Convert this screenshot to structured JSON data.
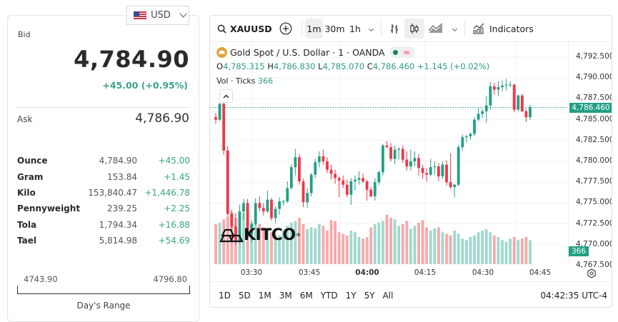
{
  "currency_selector": {
    "label": "USD",
    "flag": "us-flag-icon"
  },
  "quote": {
    "bid_label": "Bid",
    "bid_value": "4,784.90",
    "bid_change": "+45.00 (+0.95%)",
    "ask_label": "Ask",
    "ask_value": "4,786.90"
  },
  "units": [
    {
      "name": "Ounce",
      "price": "4,784.90",
      "change": "+45.00"
    },
    {
      "name": "Gram",
      "price": "153.84",
      "change": "+1.45"
    },
    {
      "name": "Kilo",
      "price": "153,840.47",
      "change": "+1,446.78"
    },
    {
      "name": "Pennyweight",
      "price": "239.25",
      "change": "+2.25"
    },
    {
      "name": "Tola",
      "price": "1,794.34",
      "change": "+16.88"
    },
    {
      "name": "Tael",
      "price": "5,814.98",
      "change": "+54.69"
    }
  ],
  "day_range": {
    "low": "4743.90",
    "high": "4796.80",
    "label": "Day's Range"
  },
  "chart": {
    "toolbar": {
      "symbol": "XAUUSD",
      "intervals": [
        "1m",
        "30m",
        "1h"
      ],
      "active_interval": "1m",
      "indicators_label": "Indicators"
    },
    "legend": {
      "title": "Gold Spot / U.S. Dollar · 1 · OANDA",
      "o_label": "O",
      "o": "4,785.315",
      "h_label": "H",
      "h": "4,786.830",
      "l_label": "L",
      "l": "4,785.070",
      "c_label": "C",
      "c": "4,786.460",
      "change": "+1.145 (+0.02%)",
      "vol_label": "Vol · Ticks",
      "vol_value": "366"
    },
    "price_ticks": [
      "4,792.500",
      "4,790.000",
      "4,787.500",
      "4,785.000",
      "4,782.500",
      "4,780.000",
      "4,777.500",
      "4,775.000",
      "4,772.500",
      "4,770.000",
      "4,767.500"
    ],
    "last_price_tag": "4,786.460",
    "volume_tag": "366",
    "time_ticks": [
      {
        "label": "03:30",
        "bold": false
      },
      {
        "label": "03:45",
        "bold": false
      },
      {
        "label": "04:00",
        "bold": true
      },
      {
        "label": "04:15",
        "bold": false
      },
      {
        "label": "04:30",
        "bold": false
      },
      {
        "label": "04:45",
        "bold": false
      }
    ],
    "ranges": [
      "1D",
      "5D",
      "1M",
      "3M",
      "6M",
      "YTD",
      "1Y",
      "5Y",
      "All"
    ],
    "clock": "04:42:35 UTC-4",
    "watermark": "KITCO",
    "colors": {
      "up": "#22a085",
      "down": "#f0364a",
      "vol_up": "#9fd9cd",
      "vol_down": "#f7a9ac",
      "last_line": "#22a085"
    }
  },
  "chart_data": {
    "type": "candlestick",
    "title": "Gold Spot / U.S. Dollar · 1 · OANDA",
    "interval": "1m",
    "ylim": [
      4766.5,
      4793.0
    ],
    "y_ticks": [
      4767.5,
      4770,
      4772.5,
      4775,
      4777.5,
      4780,
      4782.5,
      4785,
      4787.5,
      4790,
      4792.5
    ],
    "x_ticks": [
      "03:30",
      "03:45",
      "04:00",
      "04:15",
      "04:30",
      "04:45"
    ],
    "last_price": 4786.46,
    "ohlc": [
      [
        4785.3,
        4785.8,
        4784.5,
        4785.0
      ],
      [
        4785.0,
        4787.0,
        4784.8,
        4786.9
      ],
      [
        4786.9,
        4787.2,
        4780.8,
        4781.3
      ],
      [
        4781.3,
        4781.8,
        4773.5,
        4773.7
      ],
      [
        4773.7,
        4774.2,
        4771.8,
        4772.2
      ],
      [
        4772.2,
        4773.8,
        4770.0,
        4770.5
      ],
      [
        4770.5,
        4774.8,
        4770.2,
        4774.0
      ],
      [
        4774.0,
        4775.5,
        4773.0,
        4775.0
      ],
      [
        4775.0,
        4775.5,
        4770.8,
        4771.2
      ],
      [
        4771.2,
        4773.0,
        4770.3,
        4772.5
      ],
      [
        4772.5,
        4775.6,
        4772.3,
        4775.0
      ],
      [
        4775.0,
        4775.8,
        4774.0,
        4774.4
      ],
      [
        4774.4,
        4775.0,
        4773.5,
        4774.0
      ],
      [
        4774.0,
        4776.5,
        4773.8,
        4775.4
      ],
      [
        4775.4,
        4775.6,
        4772.9,
        4773.2
      ],
      [
        4773.2,
        4774.6,
        4772.6,
        4774.3
      ],
      [
        4774.3,
        4775.7,
        4773.6,
        4775.2
      ],
      [
        4775.2,
        4775.4,
        4774.7,
        4775.2
      ],
      [
        4775.2,
        4777.6,
        4775.0,
        4776.8
      ],
      [
        4776.8,
        4779.6,
        4776.6,
        4779.3
      ],
      [
        4779.3,
        4781.5,
        4778.3,
        4780.5
      ],
      [
        4780.5,
        4780.9,
        4777.2,
        4777.6
      ],
      [
        4777.6,
        4777.9,
        4774.5,
        4775.1
      ],
      [
        4775.1,
        4776.8,
        4774.4,
        4776.2
      ],
      [
        4776.2,
        4778.6,
        4775.8,
        4778.4
      ],
      [
        4778.4,
        4780.3,
        4778.0,
        4779.9
      ],
      [
        4779.9,
        4781.2,
        4779.3,
        4780.6
      ],
      [
        4780.6,
        4781.4,
        4779.6,
        4780.0
      ],
      [
        4780.0,
        4780.5,
        4778.6,
        4779.0
      ],
      [
        4779.0,
        4779.6,
        4777.8,
        4778.5
      ],
      [
        4778.5,
        4779.0,
        4777.3,
        4778.0
      ],
      [
        4778.0,
        4778.2,
        4775.7,
        4777.7
      ],
      [
        4777.7,
        4778.3,
        4776.8,
        4777.2
      ],
      [
        4777.2,
        4777.8,
        4775.7,
        4776.0
      ],
      [
        4776.0,
        4778.0,
        4774.8,
        4777.6
      ],
      [
        4777.6,
        4778.3,
        4776.5,
        4777.8
      ],
      [
        4777.8,
        4778.8,
        4777.2,
        4778.0
      ],
      [
        4778.0,
        4778.5,
        4777.4,
        4777.6
      ],
      [
        4777.6,
        4777.8,
        4775.3,
        4776.6
      ],
      [
        4776.6,
        4776.9,
        4775.7,
        4775.8
      ],
      [
        4775.8,
        4778.0,
        4775.3,
        4777.5
      ],
      [
        4777.5,
        4778.9,
        4777.2,
        4778.7
      ],
      [
        4778.7,
        4782.1,
        4778.3,
        4781.9
      ],
      [
        4781.9,
        4782.4,
        4781.6,
        4781.7
      ],
      [
        4781.7,
        4782.2,
        4780.0,
        4780.3
      ],
      [
        4780.3,
        4781.9,
        4779.7,
        4781.4
      ],
      [
        4781.4,
        4781.7,
        4780.2,
        4781.5
      ],
      [
        4781.5,
        4781.9,
        4779.8,
        4780.2
      ],
      [
        4780.2,
        4781.2,
        4778.9,
        4779.4
      ],
      [
        4779.4,
        4781.4,
        4778.9,
        4780.0
      ],
      [
        4780.0,
        4781.2,
        4779.4,
        4780.4
      ],
      [
        4780.4,
        4780.9,
        4778.3,
        4779.2
      ],
      [
        4779.2,
        4779.6,
        4777.9,
        4778.6
      ],
      [
        4778.6,
        4779.2,
        4777.6,
        4778.4
      ],
      [
        4778.4,
        4780.3,
        4778.2,
        4779.3
      ],
      [
        4779.3,
        4780.0,
        4778.4,
        4779.4
      ],
      [
        4779.4,
        4779.8,
        4777.6,
        4778.2
      ],
      [
        4778.2,
        4780.0,
        4777.9,
        4779.6
      ],
      [
        4779.6,
        4780.1,
        4777.1,
        4777.5
      ],
      [
        4777.5,
        4781.0,
        4776.7,
        4776.9
      ],
      [
        4776.9,
        4777.3,
        4775.7,
        4777.2
      ],
      [
        4777.2,
        4782.0,
        4777.0,
        4781.7
      ],
      [
        4781.7,
        4783.2,
        4781.3,
        4782.9
      ],
      [
        4782.9,
        4783.2,
        4782.3,
        4783.0
      ],
      [
        4783.0,
        4783.5,
        4782.6,
        4783.3
      ],
      [
        4783.3,
        4785.3,
        4783.0,
        4785.0
      ],
      [
        4785.0,
        4786.4,
        4784.8,
        4785.7
      ],
      [
        4785.7,
        4786.3,
        4785.2,
        4786.0
      ],
      [
        4786.0,
        4787.8,
        4784.6,
        4786.7
      ],
      [
        4786.7,
        4789.5,
        4786.2,
        4789.0
      ],
      [
        4789.0,
        4789.4,
        4788.0,
        4788.6
      ],
      [
        4788.6,
        4789.6,
        4787.8,
        4788.9
      ],
      [
        4788.9,
        4789.7,
        4788.4,
        4789.1
      ],
      [
        4789.1,
        4789.9,
        4788.5,
        4789.2
      ],
      [
        4789.2,
        4789.6,
        4788.9,
        4789.2
      ],
      [
        4789.2,
        4789.3,
        4785.9,
        4786.2
      ],
      [
        4786.2,
        4788.0,
        4786.0,
        4787.9
      ],
      [
        4787.9,
        4788.1,
        4785.9,
        4786.0
      ],
      [
        4786.0,
        4786.3,
        4784.7,
        4785.3
      ],
      [
        4785.3,
        4786.8,
        4785.0,
        4786.5
      ]
    ],
    "volume": [
      50,
      52,
      56,
      60,
      65,
      58,
      60,
      64,
      54,
      52,
      55,
      50,
      46,
      44,
      40,
      38,
      36,
      42,
      48,
      52,
      54,
      58,
      50,
      44,
      46,
      45,
      50,
      48,
      42,
      55,
      54,
      40,
      38,
      36,
      42,
      40,
      34,
      32,
      34,
      46,
      50,
      52,
      54,
      62,
      58,
      56,
      48,
      50,
      54,
      44,
      48,
      52,
      55,
      46,
      42,
      45,
      46,
      40,
      38,
      36,
      42,
      38,
      32,
      30,
      34,
      36,
      40,
      42,
      44,
      40,
      36,
      34,
      30,
      28,
      32,
      34,
      30,
      32,
      34,
      30
    ],
    "volume_max": 100
  }
}
